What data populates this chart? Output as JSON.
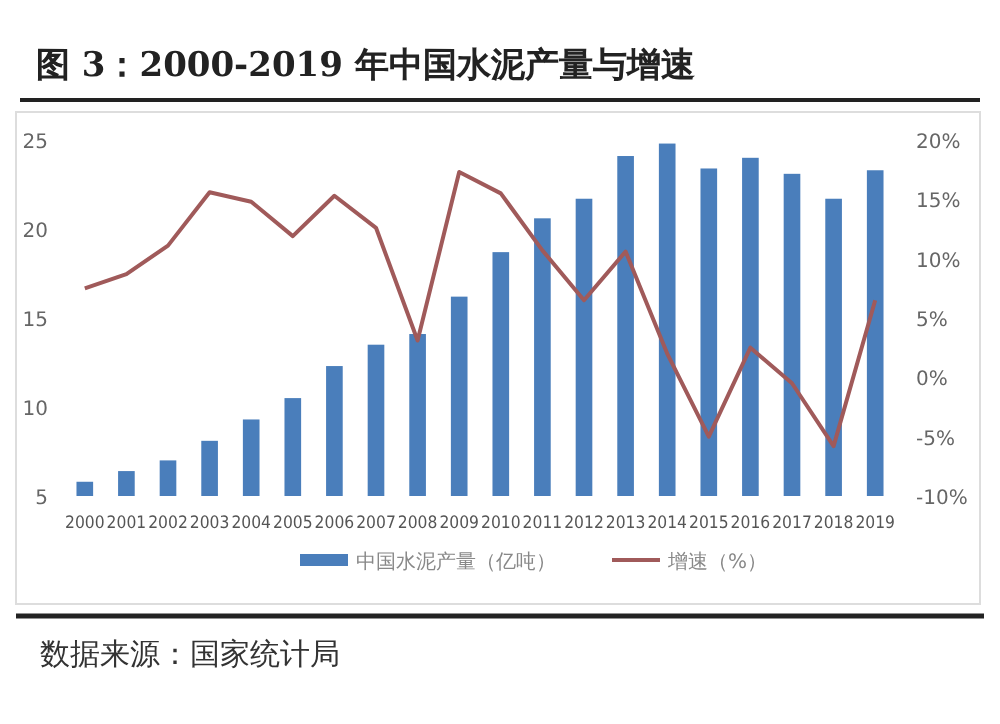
{
  "chart_data": {
    "type": "bar",
    "title": "图 3：2000-2019 年中国水泥产量与增速",
    "categories": [
      "2000",
      "2001",
      "2002",
      "2003",
      "2004",
      "2005",
      "2006",
      "2007",
      "2008",
      "2009",
      "2010",
      "2011",
      "2012",
      "2013",
      "2014",
      "2015",
      "2016",
      "2017",
      "2018",
      "2019"
    ],
    "series": [
      {
        "name": "中国水泥产量（亿吨）",
        "color": "#4a7ebb",
        "values": [
          5.8,
          6.4,
          7.0,
          8.1,
          9.3,
          10.5,
          12.3,
          13.5,
          14.1,
          16.2,
          18.7,
          20.6,
          21.7,
          24.1,
          24.8,
          23.4,
          24.0,
          23.1,
          21.7,
          23.3
        ]
      },
      {
        "name": "增速（%）",
        "type": "line",
        "axis": "y2",
        "color": "#a05a5a",
        "values": [
          7.5,
          8.7,
          11.1,
          15.6,
          14.8,
          11.9,
          15.3,
          12.6,
          3.1,
          17.3,
          15.5,
          10.7,
          6.5,
          10.6,
          2,
          -5,
          2.5,
          -0.5,
          -5.8,
          6.5
        ]
      }
    ],
    "ylim": [
      5,
      25
    ],
    "yticks": [
      5,
      10,
      15,
      20,
      25
    ],
    "y2lim": [
      -10,
      20
    ],
    "y2ticks": [
      {
        "value": -10,
        "label": "-10%"
      },
      {
        "value": -5,
        "label": "-5%"
      },
      {
        "value": 0,
        "label": "0%"
      },
      {
        "value": 5,
        "label": "5%"
      },
      {
        "value": 10,
        "label": "10%"
      },
      {
        "value": 15,
        "label": "15%"
      },
      {
        "value": 20,
        "label": "20%"
      }
    ],
    "grid": false,
    "legend": "bottom",
    "annotations": [
      "数据来源：国家统计局"
    ]
  }
}
